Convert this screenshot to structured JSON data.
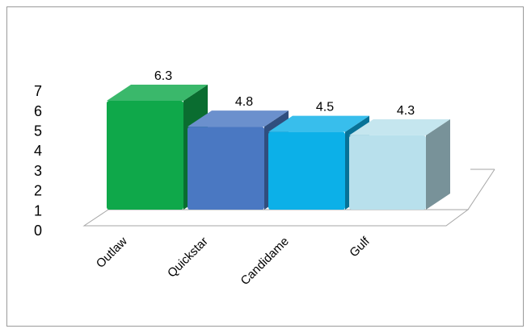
{
  "chart_data": {
    "type": "bar",
    "categories": [
      "Outlaw",
      "Quickstar",
      "Candidame",
      "Gulf"
    ],
    "values": [
      6.3,
      4.8,
      4.5,
      4.3
    ],
    "value_labels": [
      "6.3",
      "4.8",
      "4.5",
      "4.3"
    ],
    "y_ticks": [
      "0",
      "1",
      "2",
      "3",
      "4",
      "5",
      "6",
      "7"
    ],
    "ylim": [
      0,
      7
    ],
    "grid": false,
    "legend": "none",
    "style": "3d-bars",
    "colors": [
      "#0fa84a",
      "#4a78c2",
      "#0cb0e8",
      "#b8e0ec"
    ]
  }
}
